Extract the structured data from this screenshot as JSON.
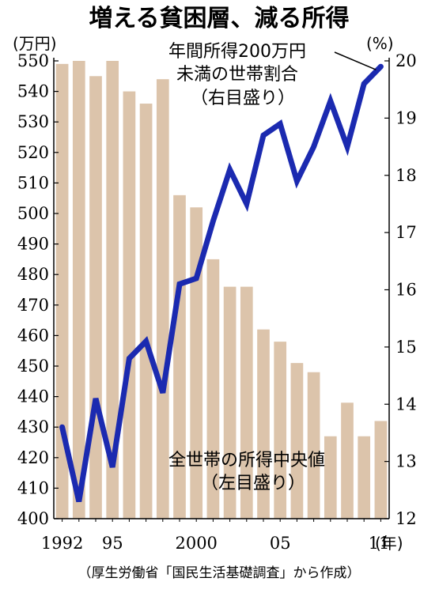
{
  "colors": {
    "bar": "#dcc4ab",
    "line": "#1b2ab0",
    "axis": "#000000"
  },
  "chart_data": {
    "type": "bar+line",
    "title": "増える貧困層、減る所得",
    "source": "（厚生労働省「国民生活基礎調査」から作成）",
    "x": [
      1992,
      1993,
      1994,
      1995,
      1996,
      1997,
      1998,
      1999,
      2000,
      2001,
      2002,
      2003,
      2004,
      2005,
      2006,
      2007,
      2008,
      2009,
      2010,
      2011
    ],
    "x_tick_labels": [
      {
        "x": 1992,
        "label": "1992"
      },
      {
        "x": 1995,
        "label": "95"
      },
      {
        "x": 2000,
        "label": "2000"
      },
      {
        "x": 2005,
        "label": "05"
      },
      {
        "x": 2011,
        "label": "11"
      }
    ],
    "x_unit": "(年)",
    "left_axis": {
      "unit": "(万円)",
      "ylim": [
        400,
        550
      ],
      "ticks": [
        400,
        410,
        420,
        430,
        440,
        450,
        460,
        470,
        480,
        490,
        500,
        510,
        520,
        530,
        540,
        550
      ]
    },
    "right_axis": {
      "unit": "(%)",
      "ylim": [
        12,
        20
      ],
      "ticks": [
        12,
        13,
        14,
        15,
        16,
        17,
        18,
        19,
        20
      ]
    },
    "series": [
      {
        "name": "全世帯の所得中央値",
        "axis_note": "（左目盛り）",
        "type": "bar",
        "axis": "left",
        "values": [
          549,
          550,
          545,
          550,
          540,
          536,
          544,
          506,
          502,
          485,
          476,
          476,
          462,
          458,
          451,
          448,
          427,
          438,
          427,
          432
        ]
      },
      {
        "name": "年間所得200万円未満の世帯割合",
        "name_lines": [
          "年間所得200万円",
          "未満の世帯割合"
        ],
        "axis_note": "（右目盛り）",
        "type": "line",
        "axis": "right",
        "values": [
          13.6,
          12.3,
          14.1,
          12.9,
          14.8,
          15.1,
          14.2,
          16.1,
          16.2,
          17.2,
          18.1,
          17.5,
          18.7,
          18.9,
          17.9,
          18.5,
          19.3,
          18.5,
          19.6,
          19.9
        ]
      }
    ]
  }
}
